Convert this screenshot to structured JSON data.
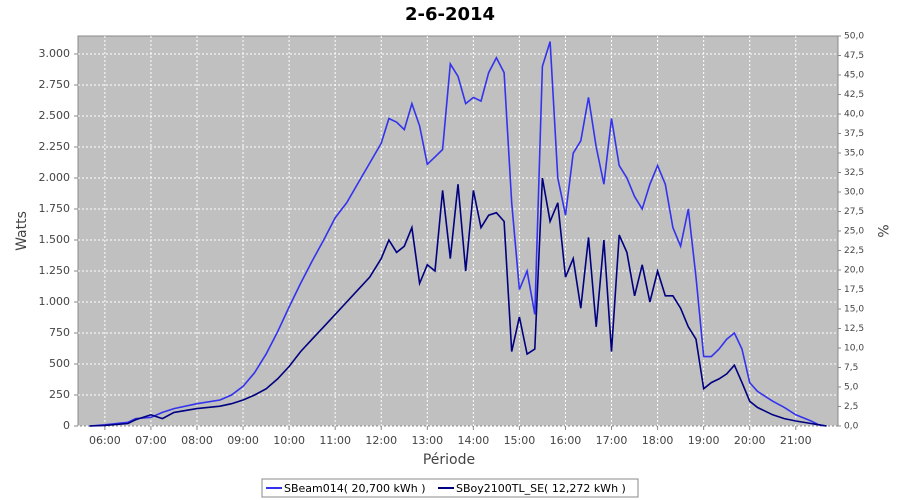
{
  "chart_data": {
    "type": "line",
    "title": "2-6-2014",
    "xlabel": "Période",
    "ylabel": "Watts",
    "y2label": "%",
    "x": [
      "05:40",
      "06:00",
      "06:30",
      "06:40",
      "07:00",
      "07:15",
      "07:30",
      "08:00",
      "08:30",
      "08:45",
      "09:00",
      "09:15",
      "09:30",
      "09:45",
      "10:00",
      "10:15",
      "10:30",
      "10:45",
      "11:00",
      "11:15",
      "11:30",
      "11:45",
      "12:00",
      "12:10",
      "12:20",
      "12:30",
      "12:40",
      "12:50",
      "13:00",
      "13:10",
      "13:20",
      "13:30",
      "13:40",
      "13:50",
      "14:00",
      "14:10",
      "14:20",
      "14:30",
      "14:40",
      "14:50",
      "15:00",
      "15:10",
      "15:20",
      "15:30",
      "15:40",
      "15:50",
      "16:00",
      "16:10",
      "16:20",
      "16:30",
      "16:40",
      "16:50",
      "17:00",
      "17:10",
      "17:20",
      "17:30",
      "17:40",
      "17:50",
      "18:00",
      "18:10",
      "18:20",
      "18:30",
      "18:40",
      "18:50",
      "19:00",
      "19:10",
      "19:20",
      "19:30",
      "19:40",
      "19:50",
      "20:00",
      "20:10",
      "20:30",
      "20:45",
      "21:00",
      "21:20",
      "21:30",
      "21:40"
    ],
    "series": [
      {
        "name": "SBeam014( 20,700 kWh )",
        "color": "#3333ee",
        "values": [
          0,
          10,
          30,
          60,
          70,
          110,
          140,
          180,
          210,
          250,
          320,
          430,
          580,
          760,
          960,
          1150,
          1330,
          1500,
          1680,
          1800,
          1960,
          2120,
          2280,
          2480,
          2450,
          2390,
          2600,
          2420,
          2110,
          2170,
          2230,
          2920,
          2820,
          2600,
          2650,
          2620,
          2850,
          2970,
          2850,
          1800,
          1100,
          1250,
          900,
          2900,
          3100,
          2000,
          1700,
          2200,
          2300,
          2650,
          2250,
          1950,
          2480,
          2100,
          2000,
          1850,
          1750,
          1950,
          2100,
          1950,
          1600,
          1450,
          1750,
          1200,
          560,
          560,
          620,
          700,
          750,
          620,
          350,
          280,
          200,
          150,
          90,
          40,
          10,
          0
        ]
      },
      {
        "name": "SBoy2100TL_SE( 12,272 kWh )",
        "color": "#000080",
        "values": [
          0,
          5,
          20,
          50,
          90,
          60,
          110,
          140,
          160,
          180,
          210,
          250,
          300,
          380,
          480,
          600,
          700,
          800,
          900,
          1000,
          1100,
          1200,
          1350,
          1500,
          1400,
          1450,
          1600,
          1150,
          1300,
          1250,
          1900,
          1350,
          1950,
          1250,
          1900,
          1600,
          1700,
          1720,
          1650,
          600,
          880,
          580,
          620,
          2000,
          1650,
          1800,
          1200,
          1350,
          950,
          1520,
          800,
          1500,
          600,
          1540,
          1400,
          1050,
          1300,
          1000,
          1250,
          1050,
          1050,
          950,
          800,
          700,
          300,
          350,
          380,
          420,
          490,
          350,
          200,
          150,
          90,
          60,
          40,
          20,
          10,
          0
        ]
      }
    ],
    "xlim": [
      "05:25",
      "21:55"
    ],
    "xticks": [
      "06:00",
      "07:00",
      "08:00",
      "09:00",
      "10:00",
      "11:00",
      "12:00",
      "13:00",
      "14:00",
      "15:00",
      "16:00",
      "17:00",
      "18:00",
      "19:00",
      "20:00",
      "21:00"
    ],
    "ylim": [
      0,
      3145
    ],
    "yticks": [
      0,
      250,
      500,
      750,
      {
        "value": 1000,
        "label": "1.000"
      },
      {
        "value": 1250,
        "label": "1.250"
      },
      {
        "value": 1500,
        "label": "1.500"
      },
      {
        "value": 1750,
        "label": "1.750"
      },
      {
        "value": 2000,
        "label": "2.000"
      },
      {
        "value": 2250,
        "label": "2.250"
      },
      {
        "value": 2500,
        "label": "2.500"
      },
      {
        "value": 2750,
        "label": "2.750"
      },
      {
        "value": 3000,
        "label": "3.000"
      }
    ],
    "y2lim": [
      0,
      50
    ],
    "y2ticks": [
      {
        "value": 0,
        "label": "0,0"
      },
      {
        "value": 2.5,
        "label": "2,5"
      },
      {
        "value": 5,
        "label": "5,0"
      },
      {
        "value": 7.5,
        "label": "7,5"
      },
      {
        "value": 10,
        "label": "10,0"
      },
      {
        "value": 12.5,
        "label": "12,5"
      },
      {
        "value": 15,
        "label": "15,0"
      },
      {
        "value": 17.5,
        "label": "17,5"
      },
      {
        "value": 20,
        "label": "20,0"
      },
      {
        "value": 22.5,
        "label": "22,5"
      },
      {
        "value": 25,
        "label": "25,0"
      },
      {
        "value": 27.5,
        "label": "27,5"
      },
      {
        "value": 30,
        "label": "30,0"
      },
      {
        "value": 32.5,
        "label": "32,5"
      },
      {
        "value": 35,
        "label": "35,0"
      },
      {
        "value": 37.5,
        "label": "37,5"
      },
      {
        "value": 40,
        "label": "40,0"
      },
      {
        "value": 42.5,
        "label": "42,5"
      },
      {
        "value": 45,
        "label": "45,0"
      },
      {
        "value": 47.5,
        "label": "47,5"
      },
      {
        "value": 50,
        "label": "50,0"
      }
    ],
    "grid": true,
    "legend": "bottom"
  }
}
